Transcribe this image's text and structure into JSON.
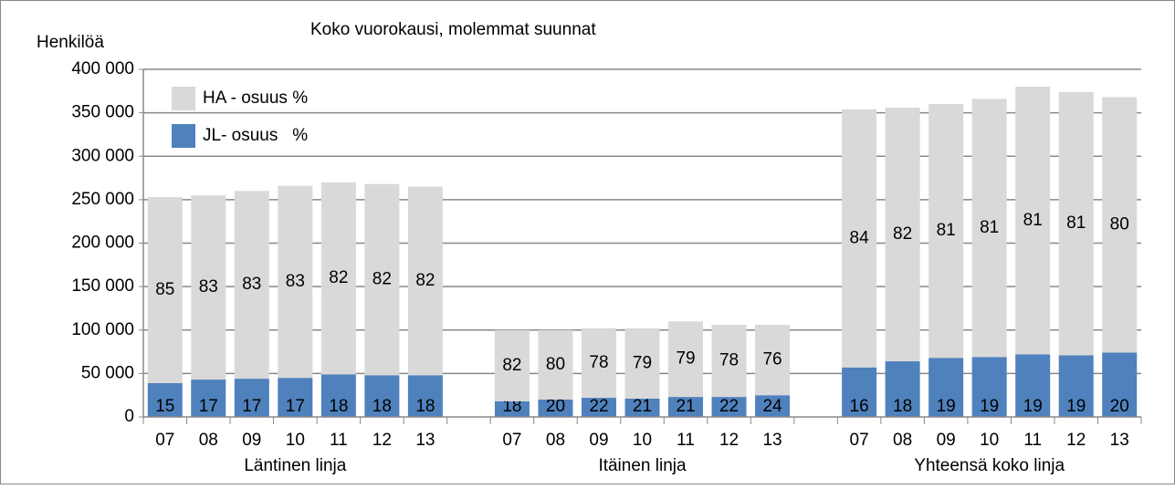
{
  "chart_data": {
    "type": "stacked-bar",
    "title": "Koko vuorokausi, molemmat  suunnat",
    "ylabel": "Henkilöä",
    "groups": [
      "Läntinen linja",
      "Itäinen linja",
      "Yhteensä koko linja"
    ],
    "categories": [
      "07",
      "08",
      "09",
      "10",
      "11",
      "12",
      "13",
      "07",
      "08",
      "09",
      "10",
      "11",
      "12",
      "13",
      "07",
      "08",
      "09",
      "10",
      "11",
      "12",
      "13"
    ],
    "series": [
      {
        "name": "JL- osuus   %",
        "color": "#4f81bd",
        "values": [
          39000,
          43000,
          44000,
          45000,
          49000,
          48000,
          48000,
          18000,
          20000,
          22000,
          21000,
          23000,
          23000,
          25000,
          57000,
          64000,
          68000,
          69000,
          72000,
          71000,
          74000
        ],
        "shares": [
          15,
          17,
          17,
          17,
          18,
          18,
          18,
          18,
          20,
          22,
          21,
          21,
          22,
          24,
          16,
          18,
          19,
          19,
          19,
          19,
          20
        ]
      },
      {
        "name": "HA - osuus %",
        "color": "#d9d9d9",
        "values": [
          214000,
          212000,
          216000,
          221000,
          221000,
          220000,
          217000,
          82000,
          80000,
          80000,
          81000,
          87000,
          83000,
          81000,
          297000,
          292000,
          292000,
          297000,
          308000,
          303000,
          294000
        ],
        "shares": [
          85,
          83,
          83,
          83,
          82,
          82,
          82,
          82,
          80,
          78,
          79,
          79,
          78,
          76,
          84,
          82,
          81,
          81,
          81,
          81,
          80
        ]
      }
    ],
    "ylim": [
      0,
      400000
    ],
    "yticks": [
      0,
      {
        "value": 50000,
        "label": "50 000"
      },
      {
        "value": 100000,
        "label": "100 000"
      },
      {
        "value": 150000,
        "label": "150 000"
      },
      {
        "value": 200000,
        "label": "200 000"
      },
      {
        "value": 250000,
        "label": "250 000"
      },
      {
        "value": 300000,
        "label": "300 000"
      },
      {
        "value": 350000,
        "label": "350 000"
      },
      {
        "value": 400000,
        "label": "400 000"
      }
    ],
    "grid": true,
    "legend": "upper left"
  }
}
